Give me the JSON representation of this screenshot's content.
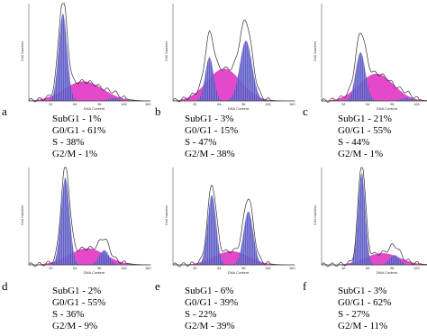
{
  "axes": {
    "y_title": "Cell Number",
    "x_title": "DNA Content",
    "x_ticks": [
      "32",
      "64",
      "96",
      "128",
      "160"
    ]
  },
  "panels": [
    {
      "label": "a",
      "stats": [
        "SubG1 - 1%",
        "G0/G1 - 61%",
        "S - 38%",
        "G2/M - 1%"
      ]
    },
    {
      "label": "b",
      "stats": [
        "SubG1 - 3%",
        "G0/G1 - 15%",
        "S - 47%",
        "G2/M - 38%"
      ]
    },
    {
      "label": "c",
      "stats": [
        "SubG1 - 21%",
        "G0/G1 - 55%",
        "S - 44%",
        "G2/M - 1%"
      ]
    },
    {
      "label": "d",
      "stats": [
        "SubG1 - 2%",
        "G0/G1 - 55%",
        "S - 36%",
        "G2/M - 9%"
      ]
    },
    {
      "label": "e",
      "stats": [
        "SubG1 - 6%",
        "G0/G1 - 39%",
        "S - 22%",
        "G2/M - 39%"
      ]
    },
    {
      "label": "f",
      "stats": [
        "SubG1 - 3%",
        "G0/G1 - 62%",
        "S - 27%",
        "G2/M - 11%"
      ]
    }
  ]
}
